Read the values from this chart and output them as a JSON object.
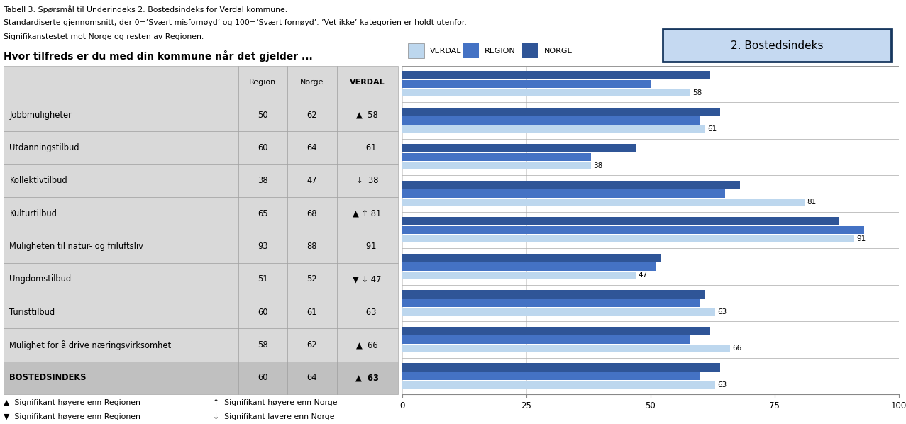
{
  "title_line1": "Tabell 3: Spørsmål til Underindeks 2: Bostedsindeks for Verdal kommune.",
  "title_line2": "Standardiserte gjennomsnitt, der 0=’Svært misfornøyd’ og 100=’Svært fornøyd’. ’Vet ikke’-kategorien er holdt utenfor.",
  "title_line3": "Signifikanstestet mot Norge og resten av Regionen.",
  "question_header": "Hvor tilfreds er du med din kommune når det gjelder ...",
  "box_title": "2. Bostedsindeks",
  "categories": [
    "Jobbmuligheter",
    "Utdanningstilbud",
    "Kollektivtilbud",
    "Kulturtilbud",
    "Muligheten til natur- og friluftsliv",
    "Ungdomstilbud",
    "Turisttilbud",
    "Mulighet for å drive næringsvirksomhet",
    "BOSTEDSINDEKS"
  ],
  "verdal_values": [
    58,
    61,
    38,
    81,
    91,
    47,
    63,
    66,
    63
  ],
  "region_values": [
    50,
    60,
    38,
    65,
    93,
    51,
    60,
    58,
    60
  ],
  "norge_values": [
    62,
    64,
    47,
    68,
    88,
    52,
    61,
    62,
    64
  ],
  "verdal_col_labels": [
    "▲  58",
    "   61",
    "↓  38",
    "▲ ↑ 81",
    "   91",
    "▼ ↓ 47",
    "   63",
    "▲  66",
    "▲  63"
  ],
  "color_verdal": "#BDD7EE",
  "color_region": "#4472C4",
  "color_norge": "#2F5597",
  "table_bg": "#D9D9D9",
  "header_bg": "#D9D9D9",
  "bosted_bg": "#C0C0C0",
  "footer_note1": "▲  Signifikant høyere enn Regionen",
  "footer_note2": "▼  Signifikant høyere enn Regionen",
  "footer_note3": "↑  Signifikant høyere enn Norge",
  "footer_note4": "↓  Signifikant lavere enn Norge",
  "xlim": [
    0,
    100
  ],
  "xticks": [
    0,
    25,
    50,
    75,
    100
  ]
}
